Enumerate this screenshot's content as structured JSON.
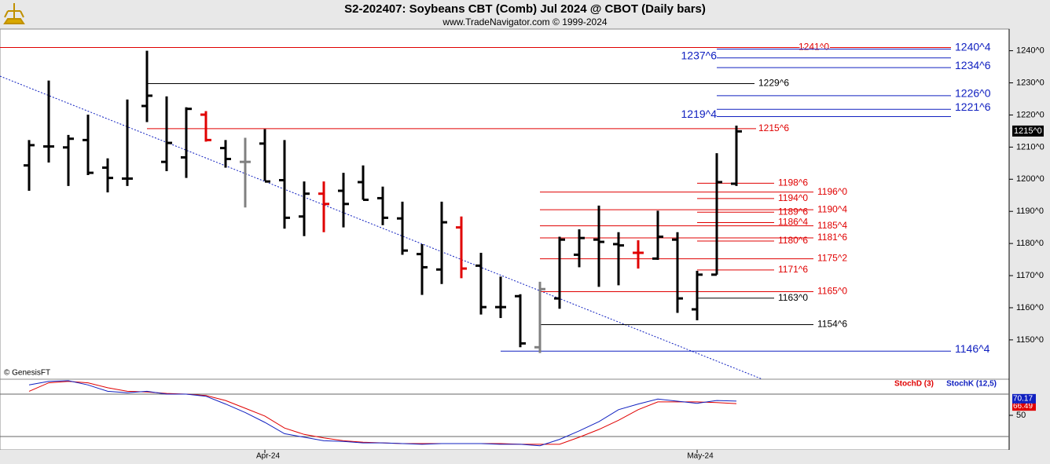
{
  "chart_data": {
    "type": "ohlc",
    "title": "S2-202407:  Soybeans CBT (Comb) Jul 2024 @ CBOT  (Daily bars)",
    "subtitle": "www.TradeNavigator.com © 1999-2024",
    "watermark": "© GenesisFT",
    "categories": [
      null,
      null,
      null,
      null,
      null,
      null,
      null,
      null,
      null,
      null,
      null,
      null,
      "Apr-24",
      null,
      null,
      null,
      null,
      null,
      null,
      null,
      null,
      null,
      null,
      null,
      null,
      null,
      null,
      null,
      null,
      null,
      null,
      null,
      null,
      null,
      "May-24",
      null,
      null
    ],
    "open": [
      1204.3,
      1210.2,
      1209.9,
      1212.2,
      1203.6,
      1200.2,
      1222.8,
      1205.4,
      1206.8,
      1220.1,
      1209.7,
      1205.4,
      1211.1,
      1199.7,
      1188.4,
      1195.5,
      1196.4,
      1199.1,
      1194.1,
      1187.8,
      1176.7,
      1171.9,
      1185.0,
      1173.1,
      1160.2,
      1163.6,
      1147.7,
      1162.9,
      1176.5,
      1181.2,
      1179.8,
      1177.1,
      1175.3,
      1181.2,
      1159.5,
      1170.3,
      1198.6
    ],
    "high": [
      1212.2,
      1230.7,
      1213.8,
      1220.1,
      1206.5,
      1224.8,
      1240.0,
      1225.8,
      1222.4,
      1221.2,
      1212.2,
      1212.9,
      1215.6,
      1212.2,
      1199.3,
      1199.3,
      1202.0,
      1204.3,
      1197.7,
      1193.0,
      1179.8,
      1193.0,
      1188.4,
      1177.1,
      1169.7,
      1164.2,
      1168.1,
      1182.1,
      1184.4,
      1191.8,
      1183.5,
      1181.0,
      1190.2,
      1183.5,
      1171.5,
      1208.1,
      1216.7
    ],
    "low": [
      1196.4,
      1205.2,
      1197.9,
      1201.3,
      1195.9,
      1197.9,
      1217.8,
      1202.5,
      1200.4,
      1211.7,
      1203.6,
      1191.2,
      1199.5,
      1184.6,
      1182.3,
      1183.5,
      1185.0,
      1193.6,
      1185.7,
      1176.5,
      1164.0,
      1167.4,
      1169.2,
      1157.9,
      1156.8,
      1147.7,
      1145.9,
      1159.7,
      1172.6,
      1166.5,
      1167.0,
      1172.2,
      1174.9,
      1158.4,
      1156.1,
      1170.3,
      1197.9
    ],
    "close": [
      1210.6,
      1210.2,
      1212.6,
      1202.0,
      1200.4,
      1200.2,
      1226.0,
      1211.3,
      1221.9,
      1212.2,
      1206.3,
      1205.4,
      1199.3,
      1188.0,
      1195.5,
      1192.3,
      1192.3,
      1193.6,
      1188.0,
      1177.8,
      1172.6,
      1186.6,
      1172.2,
      1160.2,
      1160.2,
      1148.9,
      1165.8,
      1181.2,
      1181.7,
      1180.5,
      1179.4,
      1177.1,
      1182.1,
      1162.9,
      1170.3,
      1199.1,
      1214.9
    ],
    "bar_colors": [
      "#000",
      "#000",
      "#000",
      "#000",
      "#000",
      "#000",
      "#000",
      "#000",
      "#000",
      "#e00000",
      "#000",
      "#808080",
      "#000",
      "#000",
      "#000",
      "#e00000",
      "#000",
      "#000",
      "#000",
      "#000",
      "#000",
      "#000",
      "#e00000",
      "#000",
      "#000",
      "#000",
      "#808080",
      "#000",
      "#000",
      "#000",
      "#000",
      "#e00000",
      "#000",
      "#000",
      "#000",
      "#000",
      "#000"
    ],
    "ylim": [
      1138,
      1246.5
    ],
    "yticks": [
      {
        "value": 1150,
        "label": "1150^0"
      },
      {
        "value": 1160,
        "label": "1160^0"
      },
      {
        "value": 1170,
        "label": "1170^0"
      },
      {
        "value": 1180,
        "label": "1180^0"
      },
      {
        "value": 1190,
        "label": "1190^0"
      },
      {
        "value": 1200,
        "label": "1200^0"
      },
      {
        "value": 1210,
        "label": "1210^0"
      },
      {
        "value": 1220,
        "label": "1220^0"
      },
      {
        "value": 1230,
        "label": "1230^0"
      },
      {
        "value": 1240,
        "label": "1240^0"
      }
    ],
    "last_price": {
      "value": 1215,
      "label": "1215^0"
    },
    "levels": [
      {
        "value": 1241,
        "label": "1241^0",
        "color": "#e00000"
      },
      {
        "value": 1240.5,
        "label": "1240^4",
        "color": "#1020c0"
      },
      {
        "value": 1237.75,
        "label": "1237^6",
        "color": "#1020c0"
      },
      {
        "value": 1234.75,
        "label": "1234^6",
        "color": "#1020c0"
      },
      {
        "value": 1229.75,
        "label": "1229^6",
        "color": "#000000"
      },
      {
        "value": 1226,
        "label": "1226^0",
        "color": "#1020c0"
      },
      {
        "value": 1221.75,
        "label": "1221^6",
        "color": "#1020c0"
      },
      {
        "value": 1219.5,
        "label": "1219^4",
        "color": "#1020c0"
      },
      {
        "value": 1215.75,
        "label": "1215^6",
        "color": "#e00000"
      },
      {
        "value": 1198.75,
        "label": "1198^6",
        "color": "#e00000"
      },
      {
        "value": 1196,
        "label": "1196^0",
        "color": "#e00000"
      },
      {
        "value": 1194,
        "label": "1194^0",
        "color": "#e00000"
      },
      {
        "value": 1190.5,
        "label": "1190^4",
        "color": "#e00000"
      },
      {
        "value": 1189.75,
        "label": "1189^6",
        "color": "#e00000"
      },
      {
        "value": 1186.5,
        "label": "1186^4",
        "color": "#e00000"
      },
      {
        "value": 1185.5,
        "label": "1185^4",
        "color": "#e00000"
      },
      {
        "value": 1181.75,
        "label": "1181^6",
        "color": "#e00000"
      },
      {
        "value": 1180.75,
        "label": "1180^6",
        "color": "#e00000"
      },
      {
        "value": 1175.25,
        "label": "1175^2",
        "color": "#e00000"
      },
      {
        "value": 1171.75,
        "label": "1171^6",
        "color": "#e00000"
      },
      {
        "value": 1165,
        "label": "1165^0",
        "color": "#e00000"
      },
      {
        "value": 1163,
        "label": "1163^0",
        "color": "#000000"
      },
      {
        "value": 1154.75,
        "label": "1154^6",
        "color": "#000000"
      },
      {
        "value": 1146.5,
        "label": "1146^4",
        "color": "#1020c0"
      }
    ],
    "stoch": {
      "ylim": [
        0,
        100
      ],
      "yticks": [
        50
      ],
      "levels": [
        20,
        80
      ],
      "series": [
        {
          "name": "StochD (3)",
          "color": "#e00000",
          "values": [
            84,
            96,
            98,
            96,
            89,
            84,
            83,
            81,
            80,
            78,
            71,
            60,
            49,
            32,
            23,
            18,
            14,
            12,
            11,
            10,
            10,
            10,
            10,
            10,
            10,
            9,
            9,
            9,
            19,
            30,
            43,
            58,
            69,
            69,
            69,
            68,
            66.49
          ]
        },
        {
          "name": "StochK (12,5)",
          "color": "#1020c0",
          "values": [
            93,
            98,
            99,
            93,
            84,
            82,
            84,
            80,
            80,
            77,
            66,
            54,
            40,
            24,
            19,
            14,
            13,
            11,
            11,
            10,
            9,
            10,
            10,
            10,
            9,
            9,
            7,
            16,
            28,
            41,
            58,
            66,
            73,
            70,
            67,
            71,
            70.17
          ]
        }
      ]
    }
  }
}
